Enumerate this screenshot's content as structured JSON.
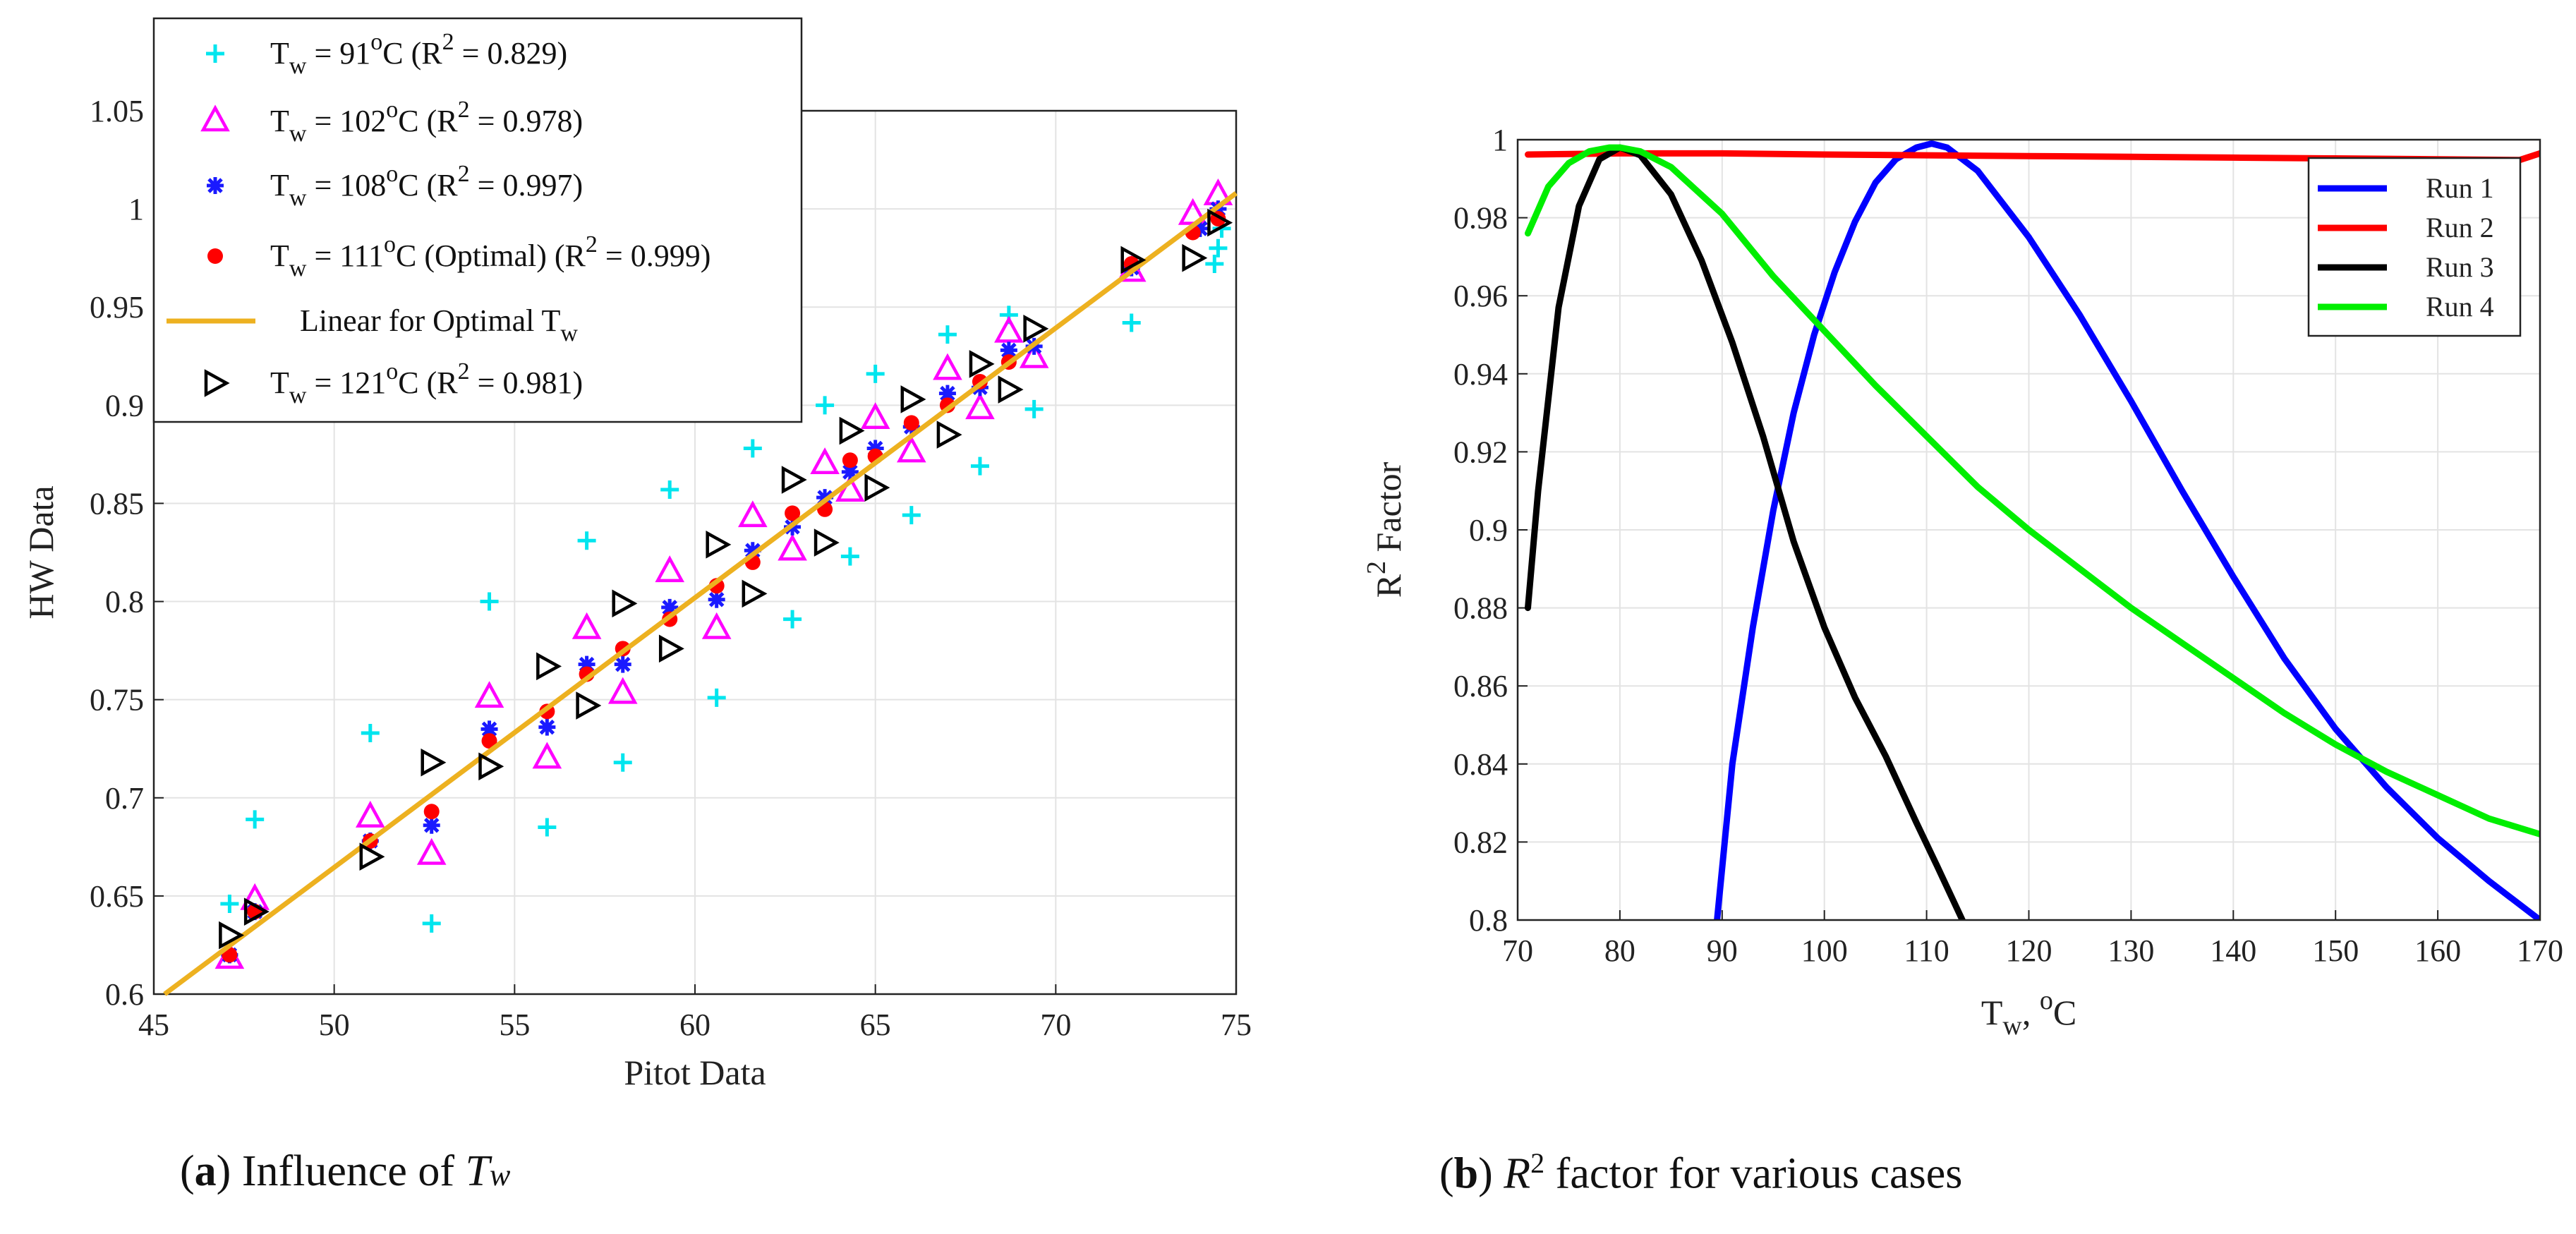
{
  "chart_data": [
    {
      "type": "scatter",
      "xlabel": "Pitot Data",
      "ylabel": "HW Data",
      "xlim": [
        45,
        75
      ],
      "ylim": [
        0.6,
        1.05
      ],
      "xticks": [
        "45",
        "50",
        "55",
        "60",
        "65",
        "70",
        "75"
      ],
      "yticks": [
        "0.6",
        "0.65",
        "0.7",
        "0.75",
        "0.8",
        "0.85",
        "0.9",
        "0.95",
        "1",
        "1.05"
      ],
      "grid": true,
      "legend_position": "top-left",
      "colors": {
        "s91": "#00e5ee",
        "s102": "#ff00ff",
        "s108": "#1a1aff",
        "s111": "#ff0000",
        "fit": "#edb120",
        "s121": "#000000"
      },
      "legend": {
        "s91": {
          "pre": "T",
          "sub": "w",
          "mid": " = 91",
          "sup": "o",
          "post": "C (R",
          "sup2": "2",
          "tail": " = 0.829)"
        },
        "s102": {
          "pre": "T",
          "sub": "w",
          "mid": " = 102",
          "sup": "o",
          "post": "C (R",
          "sup2": "2",
          "tail": " = 0.978)"
        },
        "s108": {
          "pre": "T",
          "sub": "w",
          "mid": " = 108",
          "sup": "o",
          "post": "C (R",
          "sup2": "2",
          "tail": " = 0.997)"
        },
        "s111": {
          "pre": "T",
          "sub": "w",
          "mid": " = 111",
          "sup": "o",
          "post": "C (Optimal) (R",
          "sup2": "2",
          "tail": " = 0.999)"
        },
        "fit": {
          "pre": "Linear for Optimal T",
          "sub": "w"
        },
        "s121": {
          "pre": "T",
          "sub": "w",
          "mid": " = 121",
          "sup": "o",
          "post": "C (R",
          "sup2": "2",
          "tail": " = 0.981)"
        }
      },
      "fit_line": {
        "x": [
          45.3,
          75
        ],
        "y": [
          0.6,
          1.008
        ]
      },
      "series": [
        {
          "key": "s91",
          "marker": "plus",
          "points": [
            [
              47.1,
              0.646
            ],
            [
              47.8,
              0.689
            ],
            [
              51.0,
              0.733
            ],
            [
              52.7,
              0.636
            ],
            [
              54.3,
              0.8
            ],
            [
              55.9,
              0.685
            ],
            [
              57.0,
              0.831
            ],
            [
              58.0,
              0.718
            ],
            [
              59.3,
              0.857
            ],
            [
              60.6,
              0.751
            ],
            [
              61.6,
              0.878
            ],
            [
              62.7,
              0.791
            ],
            [
              63.6,
              0.9
            ],
            [
              64.3,
              0.823
            ],
            [
              65.0,
              0.916
            ],
            [
              66.0,
              0.844
            ],
            [
              67.0,
              0.936
            ],
            [
              67.9,
              0.869
            ],
            [
              68.7,
              0.946
            ],
            [
              69.4,
              0.898
            ],
            [
              72.1,
              0.942
            ],
            [
              74.4,
              0.972
            ],
            [
              74.5,
              0.98
            ],
            [
              74.6,
              0.99
            ]
          ]
        },
        {
          "key": "s102",
          "marker": "triangle",
          "points": [
            [
              47.1,
              0.618
            ],
            [
              47.8,
              0.648
            ],
            [
              51.0,
              0.69
            ],
            [
              52.7,
              0.671
            ],
            [
              54.3,
              0.751
            ],
            [
              55.9,
              0.72
            ],
            [
              57.0,
              0.786
            ],
            [
              58.0,
              0.753
            ],
            [
              59.3,
              0.815
            ],
            [
              60.6,
              0.786
            ],
            [
              61.6,
              0.843
            ],
            [
              62.7,
              0.826
            ],
            [
              63.6,
              0.87
            ],
            [
              64.3,
              0.856
            ],
            [
              65.0,
              0.893
            ],
            [
              66.0,
              0.876
            ],
            [
              67.0,
              0.918
            ],
            [
              67.9,
              0.898
            ],
            [
              68.7,
              0.937
            ],
            [
              69.4,
              0.924
            ],
            [
              72.1,
              0.968
            ],
            [
              73.8,
              0.997
            ],
            [
              74.5,
              1.007
            ]
          ]
        },
        {
          "key": "s108",
          "marker": "asterisk",
          "points": [
            [
              47.1,
              0.62
            ],
            [
              47.8,
              0.642
            ],
            [
              51.0,
              0.678
            ],
            [
              52.7,
              0.686
            ],
            [
              54.3,
              0.735
            ],
            [
              55.9,
              0.736
            ],
            [
              57.0,
              0.768
            ],
            [
              58.0,
              0.768
            ],
            [
              59.3,
              0.797
            ],
            [
              60.6,
              0.801
            ],
            [
              61.6,
              0.826
            ],
            [
              62.7,
              0.838
            ],
            [
              63.6,
              0.853
            ],
            [
              64.3,
              0.866
            ],
            [
              65.0,
              0.878
            ],
            [
              66.0,
              0.889
            ],
            [
              67.0,
              0.906
            ],
            [
              67.9,
              0.909
            ],
            [
              68.7,
              0.928
            ],
            [
              69.4,
              0.93
            ],
            [
              72.1,
              0.97
            ],
            [
              74.0,
              0.99
            ],
            [
              74.5,
              1.0
            ]
          ]
        },
        {
          "key": "s111",
          "marker": "dot",
          "points": [
            [
              47.1,
              0.62
            ],
            [
              47.8,
              0.642
            ],
            [
              51.0,
              0.678
            ],
            [
              52.7,
              0.693
            ],
            [
              54.3,
              0.729
            ],
            [
              55.9,
              0.744
            ],
            [
              57.0,
              0.763
            ],
            [
              58.0,
              0.776
            ],
            [
              59.3,
              0.791
            ],
            [
              60.6,
              0.808
            ],
            [
              61.6,
              0.82
            ],
            [
              62.7,
              0.845
            ],
            [
              63.6,
              0.847
            ],
            [
              64.3,
              0.872
            ],
            [
              65.0,
              0.874
            ],
            [
              66.0,
              0.891
            ],
            [
              67.0,
              0.9
            ],
            [
              67.9,
              0.912
            ],
            [
              68.7,
              0.922
            ],
            [
              72.1,
              0.972
            ],
            [
              73.8,
              0.988
            ],
            [
              74.5,
              0.995
            ]
          ]
        },
        {
          "key": "s121",
          "marker": "tri_right",
          "points": [
            [
              47.1,
              0.63
            ],
            [
              47.8,
              0.642
            ],
            [
              51.0,
              0.67
            ],
            [
              52.7,
              0.718
            ],
            [
              54.3,
              0.716
            ],
            [
              55.9,
              0.767
            ],
            [
              57.0,
              0.747
            ],
            [
              58.0,
              0.799
            ],
            [
              59.3,
              0.776
            ],
            [
              60.6,
              0.829
            ],
            [
              61.6,
              0.804
            ],
            [
              62.7,
              0.862
            ],
            [
              63.6,
              0.83
            ],
            [
              64.3,
              0.887
            ],
            [
              65.0,
              0.858
            ],
            [
              66.0,
              0.903
            ],
            [
              67.0,
              0.885
            ],
            [
              67.9,
              0.921
            ],
            [
              68.7,
              0.908
            ],
            [
              69.4,
              0.939
            ],
            [
              72.1,
              0.974
            ],
            [
              73.8,
              0.975
            ],
            [
              74.5,
              0.993
            ]
          ]
        }
      ],
      "caption": {
        "label": "a",
        "text": " Influence of ",
        "var": "T",
        "varsub": "w"
      }
    },
    {
      "type": "line",
      "xlabel_main": "T",
      "xlabel_sub": "w",
      "xlabel_rest": ", ",
      "xlabel_sup": "o",
      "xlabel_unit": "C",
      "ylabel_pre": "R",
      "ylabel_sup": "2",
      "ylabel_post": " Factor",
      "xlim": [
        70,
        170
      ],
      "ylim": [
        0.8,
        1.0
      ],
      "xticks": [
        "70",
        "80",
        "90",
        "100",
        "110",
        "120",
        "130",
        "140",
        "150",
        "160",
        "170"
      ],
      "yticks": [
        "0.8",
        "0.82",
        "0.84",
        "0.86",
        "0.88",
        "0.9",
        "0.92",
        "0.94",
        "0.96",
        "0.98",
        "1"
      ],
      "grid": true,
      "legend_position": "top-right",
      "series": [
        {
          "name": "Run 1",
          "color": "#0000ff",
          "x": [
            89.5,
            91,
            93,
            95,
            97,
            99,
            101,
            103,
            105,
            107,
            109,
            110.5,
            112,
            115,
            120,
            125,
            130,
            135,
            140,
            145,
            150,
            155,
            160,
            165,
            170
          ],
          "y": [
            0.8,
            0.84,
            0.875,
            0.905,
            0.93,
            0.95,
            0.966,
            0.979,
            0.989,
            0.995,
            0.998,
            0.999,
            0.998,
            0.992,
            0.975,
            0.955,
            0.933,
            0.91,
            0.888,
            0.867,
            0.849,
            0.834,
            0.821,
            0.81,
            0.8
          ]
        },
        {
          "name": "Run 2",
          "color": "#ff0000",
          "x": [
            71,
            80,
            90,
            100,
            110,
            120,
            130,
            140,
            150,
            160,
            168,
            170
          ],
          "y": [
            0.9962,
            0.9965,
            0.9965,
            0.9962,
            0.996,
            0.9958,
            0.9956,
            0.9954,
            0.9952,
            0.995,
            0.9948,
            0.9965
          ]
        },
        {
          "name": "Run 3",
          "color": "#000000",
          "x": [
            71,
            72,
            74,
            76,
            78,
            80,
            82,
            85,
            88,
            91,
            94,
            97,
            100,
            103,
            106,
            109,
            111,
            113.5
          ],
          "y": [
            0.88,
            0.91,
            0.957,
            0.983,
            0.995,
            0.998,
            0.996,
            0.986,
            0.969,
            0.948,
            0.924,
            0.897,
            0.875,
            0.857,
            0.842,
            0.825,
            0.814,
            0.8
          ]
        },
        {
          "name": "Run 4",
          "color": "#00ee00",
          "x": [
            71,
            73,
            75,
            77,
            79,
            80,
            82,
            85,
            90,
            95,
            100,
            105,
            110,
            115,
            120,
            125,
            130,
            135,
            140,
            145,
            150,
            155,
            160,
            165,
            170
          ],
          "y": [
            0.976,
            0.988,
            0.994,
            0.997,
            0.998,
            0.998,
            0.997,
            0.993,
            0.981,
            0.965,
            0.951,
            0.937,
            0.924,
            0.911,
            0.9,
            0.89,
            0.88,
            0.871,
            0.862,
            0.853,
            0.845,
            0.838,
            0.832,
            0.826,
            0.822
          ]
        }
      ],
      "caption": {
        "label": "b",
        "var": "R",
        "varsup": "2",
        "text": " factor for various cases"
      }
    }
  ]
}
